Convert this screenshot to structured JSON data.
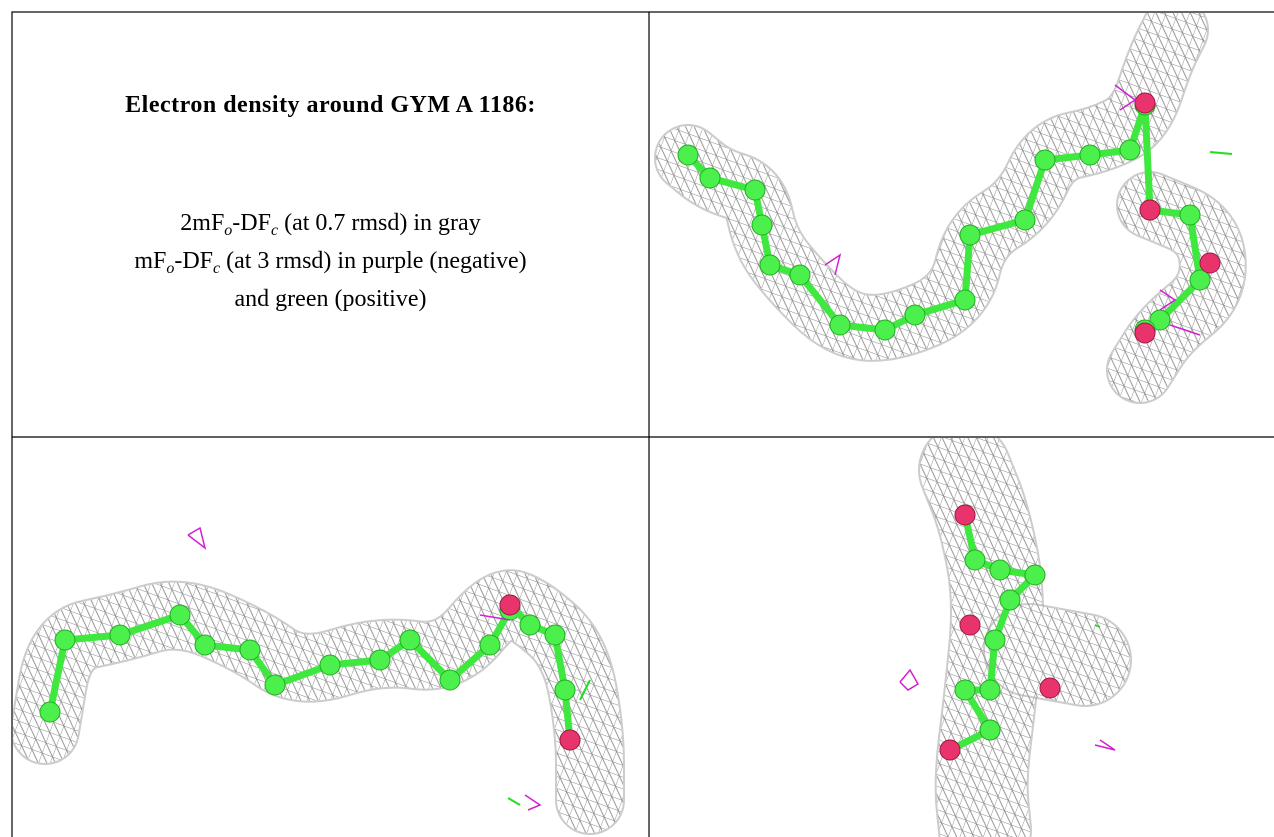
{
  "title": "Electron density around GYM A 1186:",
  "caption": {
    "lines": [
      [
        "2mF",
        "o",
        "-DF",
        "c",
        " (at 0.7 rmsd) in gray"
      ],
      [
        "mF",
        "o",
        "-DF",
        "c",
        " (at 3 rmsd) in purple (negative)"
      ],
      [
        "and green (positive)"
      ]
    ]
  }
}
